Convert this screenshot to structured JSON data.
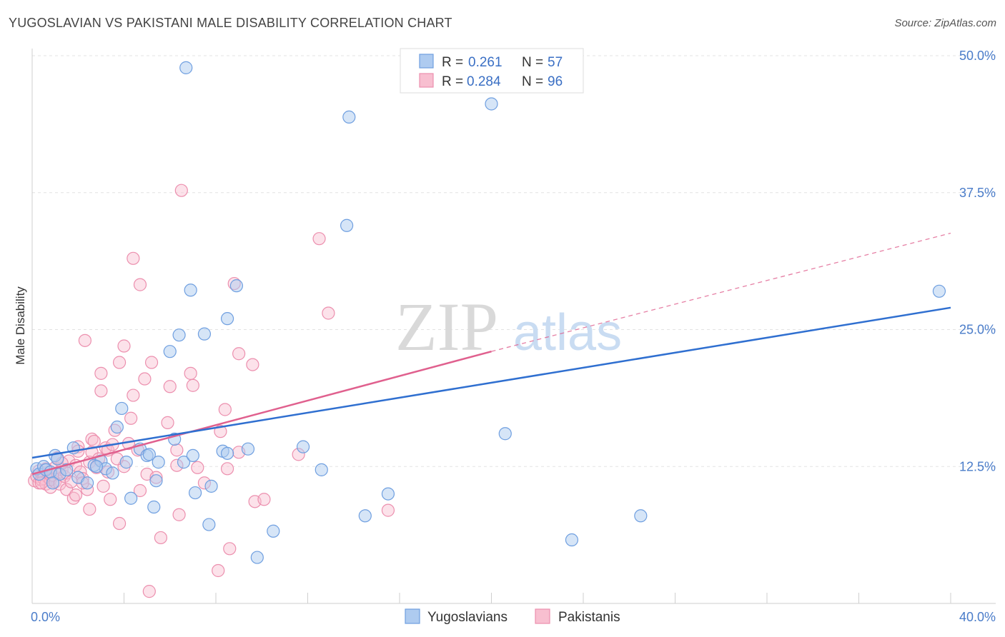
{
  "title": "YUGOSLAVIAN VS PAKISTANI MALE DISABILITY CORRELATION CHART",
  "source": "Source: ZipAtlas.com",
  "watermark": {
    "zip": "ZIP",
    "atlas": "atlas"
  },
  "colors": {
    "blue_fill": "#aecbf0",
    "blue_stroke": "#6f9fe0",
    "blue_line": "#2f6fd0",
    "pink_fill": "#f8bfd0",
    "pink_stroke": "#ec8fae",
    "pink_line": "#e0608e",
    "tick_text": "#4a7cc9"
  },
  "legend": {
    "rows": [
      {
        "r_label": "R =",
        "r_value": "0.261",
        "n_label": "N =",
        "n_value": "57"
      },
      {
        "r_label": "R =",
        "r_value": "0.284",
        "n_label": "N =",
        "n_value": "96"
      }
    ]
  },
  "bottom_legend": [
    "Yugoslavians",
    "Pakistanis"
  ],
  "chart_data": {
    "type": "scatter",
    "title": "YUGOSLAVIAN VS PAKISTANI MALE DISABILITY CORRELATION CHART",
    "xlabel": "",
    "ylabel": "Male Disability",
    "xlim": [
      0,
      40
    ],
    "ylim": [
      0,
      50
    ],
    "x_tick_labels": [
      "0.0%",
      "40.0%"
    ],
    "y_ticks": [
      12.5,
      25.0,
      37.5,
      50.0
    ],
    "y_tick_labels": [
      "12.5%",
      "25.0%",
      "37.5%",
      "50.0%"
    ],
    "series": [
      {
        "name": "Yugoslavians",
        "trend": {
          "x0": 0,
          "y0": 13.3,
          "x1": 40,
          "y1": 27.0
        },
        "points": [
          [
            0.2,
            12.3
          ],
          [
            0.3,
            11.8
          ],
          [
            0.5,
            12.5
          ],
          [
            0.6,
            12.2
          ],
          [
            0.8,
            12.0
          ],
          [
            1.0,
            13.5
          ],
          [
            1.1,
            13.2
          ],
          [
            1.2,
            11.8
          ],
          [
            1.5,
            12.2
          ],
          [
            1.8,
            14.2
          ],
          [
            2.0,
            11.5
          ],
          [
            2.4,
            11.0
          ],
          [
            2.7,
            12.6
          ],
          [
            3.0,
            13.0
          ],
          [
            3.2,
            12.3
          ],
          [
            3.5,
            11.9
          ],
          [
            3.7,
            16.1
          ],
          [
            3.9,
            17.8
          ],
          [
            4.1,
            12.9
          ],
          [
            4.3,
            9.6
          ],
          [
            4.7,
            14.1
          ],
          [
            5.0,
            13.5
          ],
          [
            5.1,
            13.6
          ],
          [
            5.3,
            8.8
          ],
          [
            5.4,
            11.2
          ],
          [
            5.5,
            12.9
          ],
          [
            6.0,
            23.0
          ],
          [
            6.2,
            15.0
          ],
          [
            6.4,
            24.5
          ],
          [
            6.6,
            12.9
          ],
          [
            6.7,
            48.9
          ],
          [
            6.9,
            28.6
          ],
          [
            7.0,
            13.5
          ],
          [
            7.1,
            10.1
          ],
          [
            7.5,
            24.6
          ],
          [
            7.7,
            7.2
          ],
          [
            7.8,
            10.7
          ],
          [
            8.3,
            13.9
          ],
          [
            8.5,
            13.7
          ],
          [
            8.5,
            26.0
          ],
          [
            8.9,
            29.0
          ],
          [
            9.4,
            14.1
          ],
          [
            9.8,
            4.2
          ],
          [
            10.5,
            6.6
          ],
          [
            11.8,
            14.3
          ],
          [
            12.6,
            12.2
          ],
          [
            13.7,
            34.5
          ],
          [
            13.8,
            44.4
          ],
          [
            14.5,
            8.0
          ],
          [
            15.5,
            10.0
          ],
          [
            20.0,
            45.6
          ],
          [
            20.6,
            15.5
          ],
          [
            23.5,
            5.8
          ],
          [
            26.5,
            8.0
          ],
          [
            39.5,
            28.5
          ],
          [
            2.8,
            12.5
          ],
          [
            0.9,
            11.0
          ]
        ]
      },
      {
        "name": "Pakistanis",
        "trend": {
          "x0": 0,
          "y0": 11.8,
          "x1": 20,
          "y1": 23.0,
          "dashed_x1": 40,
          "dashed_y1": 33.8
        },
        "points": [
          [
            0.1,
            11.2
          ],
          [
            0.2,
            11.6
          ],
          [
            0.3,
            12.1
          ],
          [
            0.3,
            11.0
          ],
          [
            0.4,
            11.3
          ],
          [
            0.5,
            11.8
          ],
          [
            0.5,
            11.4
          ],
          [
            0.6,
            10.9
          ],
          [
            0.7,
            11.5
          ],
          [
            0.7,
            12.0
          ],
          [
            0.8,
            10.6
          ],
          [
            0.8,
            11.3
          ],
          [
            0.9,
            11.7
          ],
          [
            1.0,
            11.1
          ],
          [
            1.0,
            12.4
          ],
          [
            1.1,
            11.9
          ],
          [
            1.1,
            13.3
          ],
          [
            1.2,
            10.9
          ],
          [
            1.3,
            12.2
          ],
          [
            1.4,
            11.6
          ],
          [
            1.5,
            11.9
          ],
          [
            1.5,
            10.4
          ],
          [
            1.6,
            13.0
          ],
          [
            1.7,
            11.1
          ],
          [
            1.8,
            9.6
          ],
          [
            1.9,
            12.6
          ],
          [
            2.0,
            14.3
          ],
          [
            2.0,
            13.9
          ],
          [
            2.1,
            12.0
          ],
          [
            2.2,
            11.4
          ],
          [
            2.3,
            24.0
          ],
          [
            2.4,
            10.4
          ],
          [
            2.5,
            8.6
          ],
          [
            2.5,
            12.9
          ],
          [
            2.6,
            15.0
          ],
          [
            2.6,
            13.8
          ],
          [
            2.7,
            14.8
          ],
          [
            2.8,
            12.4
          ],
          [
            2.9,
            13.2
          ],
          [
            3.0,
            19.4
          ],
          [
            3.0,
            21.0
          ],
          [
            3.1,
            10.7
          ],
          [
            3.2,
            14.2
          ],
          [
            3.3,
            14.0
          ],
          [
            3.3,
            12.0
          ],
          [
            3.4,
            9.5
          ],
          [
            3.5,
            14.5
          ],
          [
            3.6,
            15.8
          ],
          [
            3.8,
            22.0
          ],
          [
            3.8,
            7.3
          ],
          [
            4.0,
            23.5
          ],
          [
            4.0,
            12.5
          ],
          [
            4.2,
            14.6
          ],
          [
            4.3,
            16.9
          ],
          [
            4.4,
            19.0
          ],
          [
            4.4,
            31.5
          ],
          [
            4.7,
            10.3
          ],
          [
            4.7,
            29.1
          ],
          [
            4.9,
            20.5
          ],
          [
            5.0,
            11.8
          ],
          [
            5.1,
            1.1
          ],
          [
            5.2,
            22.0
          ],
          [
            5.4,
            11.5
          ],
          [
            5.6,
            6.0
          ],
          [
            5.9,
            16.5
          ],
          [
            6.0,
            19.8
          ],
          [
            6.3,
            14.0
          ],
          [
            6.3,
            12.6
          ],
          [
            6.4,
            8.1
          ],
          [
            6.5,
            37.7
          ],
          [
            6.9,
            21.0
          ],
          [
            7.0,
            19.9
          ],
          [
            7.2,
            12.4
          ],
          [
            7.5,
            11.0
          ],
          [
            8.1,
            3.0
          ],
          [
            8.2,
            15.7
          ],
          [
            8.4,
            17.7
          ],
          [
            8.6,
            5.0
          ],
          [
            8.8,
            29.2
          ],
          [
            9.0,
            22.8
          ],
          [
            9.0,
            13.8
          ],
          [
            9.6,
            21.8
          ],
          [
            9.7,
            9.3
          ],
          [
            10.1,
            9.5
          ],
          [
            11.6,
            13.6
          ],
          [
            12.5,
            33.3
          ],
          [
            12.9,
            26.5
          ],
          [
            15.5,
            8.5
          ],
          [
            1.3,
            12.8
          ],
          [
            0.6,
            12.3
          ],
          [
            2.2,
            11.0
          ],
          [
            3.7,
            13.2
          ],
          [
            1.9,
            9.9
          ],
          [
            0.4,
            11.0
          ],
          [
            4.6,
            14.0
          ],
          [
            8.5,
            12.3
          ]
        ]
      }
    ]
  }
}
